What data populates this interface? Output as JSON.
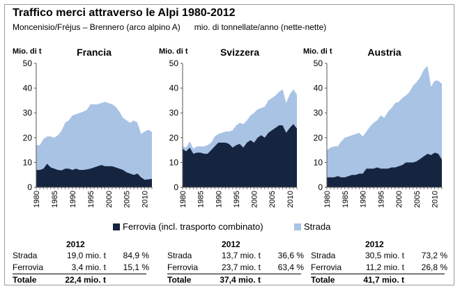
{
  "title": "Traffico merci attraverso le Alpi 1980-2012",
  "subtitle_left": "Moncenisio/Fréjus – Brennero (arco alpino A)",
  "subtitle_right": "mio. di tonnellate/anno (nette-nette)",
  "colors": {
    "ferrovia": "#16253f",
    "strada": "#a9c3e5",
    "axis": "#555555"
  },
  "legend": {
    "ferrovia": "Ferrovia (incl. trasporto combinato)",
    "strada": "Strada"
  },
  "chart_data": [
    {
      "type": "area",
      "title": "Francia",
      "ylabel": "Mio. di t",
      "ylim": [
        0,
        50
      ],
      "yticks": [
        0,
        10,
        20,
        30,
        40,
        50
      ],
      "xlim": [
        1980,
        2012
      ],
      "xticks": [
        1980,
        1985,
        1990,
        1995,
        2000,
        2005,
        2010
      ],
      "x": [
        1980,
        1981,
        1982,
        1983,
        1984,
        1985,
        1986,
        1987,
        1988,
        1989,
        1990,
        1991,
        1992,
        1993,
        1994,
        1995,
        1996,
        1997,
        1998,
        1999,
        2000,
        2001,
        2002,
        2003,
        2004,
        2005,
        2006,
        2007,
        2008,
        2009,
        2010,
        2011,
        2012
      ],
      "series": [
        {
          "name": "Ferrovia",
          "values": [
            7.0,
            7.0,
            7.5,
            9.5,
            8.0,
            7.5,
            7.0,
            6.8,
            7.5,
            7.5,
            7.0,
            7.5,
            7.0,
            7.0,
            7.2,
            7.5,
            8.0,
            8.5,
            9.0,
            8.5,
            8.5,
            8.5,
            8.0,
            7.5,
            7.0,
            6.0,
            5.5,
            5.0,
            5.5,
            4.0,
            3.0,
            3.2,
            3.4
          ]
        },
        {
          "name": "Strada",
          "values": [
            10.0,
            10.0,
            12.0,
            11.0,
            12.5,
            12.5,
            14.0,
            16.0,
            18.5,
            19.5,
            22.0,
            22.0,
            23.0,
            23.5,
            24.0,
            26.0,
            25.5,
            25.0,
            25.0,
            26.0,
            25.5,
            25.0,
            24.5,
            23.0,
            21.0,
            21.0,
            20.5,
            22.0,
            20.5,
            17.5,
            19.5,
            20.0,
            19.0
          ]
        }
      ],
      "summary": {
        "year": "2012",
        "rows": [
          {
            "label": "Strada",
            "value": "19,0 mio. t",
            "pct": "84,9 %"
          },
          {
            "label": "Ferrovia",
            "value": "3,4 mio. t",
            "pct": "15,1 %"
          }
        ],
        "total_label": "Totale",
        "total_value": "22,4 mio. t"
      }
    },
    {
      "type": "area",
      "title": "Svizzera",
      "ylabel": "Mio. di t",
      "ylim": [
        0,
        50
      ],
      "yticks": [
        0,
        10,
        20,
        30,
        40,
        50
      ],
      "xlim": [
        1980,
        2012
      ],
      "xticks": [
        1980,
        1985,
        1990,
        1995,
        2000,
        2005,
        2010
      ],
      "x": [
        1980,
        1981,
        1982,
        1983,
        1984,
        1985,
        1986,
        1987,
        1988,
        1989,
        1990,
        1991,
        1992,
        1993,
        1994,
        1995,
        1996,
        1997,
        1998,
        1999,
        2000,
        2001,
        2002,
        2003,
        2004,
        2005,
        2006,
        2007,
        2008,
        2009,
        2010,
        2011,
        2012
      ],
      "series": [
        {
          "name": "Ferrovia",
          "values": [
            15.5,
            14.5,
            16.0,
            13.5,
            14.0,
            14.0,
            13.5,
            13.5,
            15.0,
            16.5,
            18.0,
            18.0,
            18.0,
            17.5,
            16.0,
            17.0,
            17.5,
            16.0,
            18.0,
            19.0,
            18.0,
            20.0,
            21.0,
            20.0,
            22.0,
            23.0,
            24.0,
            25.0,
            25.0,
            22.0,
            24.0,
            25.5,
            23.7
          ]
        },
        {
          "name": "Strada",
          "values": [
            1.0,
            1.5,
            2.5,
            2.0,
            2.5,
            2.5,
            3.0,
            3.5,
            3.0,
            4.0,
            3.5,
            4.0,
            4.5,
            5.0,
            7.0,
            8.0,
            8.5,
            9.5,
            9.0,
            10.0,
            12.0,
            11.5,
            11.0,
            12.5,
            13.0,
            13.0,
            13.0,
            13.5,
            14.5,
            12.0,
            13.5,
            14.0,
            13.7
          ]
        }
      ],
      "summary": {
        "year": "2012",
        "rows": [
          {
            "label": "Strada",
            "value": "13,7 mio. t",
            "pct": "36,6 %"
          },
          {
            "label": "Ferrovia",
            "value": "23,7 mio. t",
            "pct": "63,4 %"
          }
        ],
        "total_label": "Totale",
        "total_value": "37,4 mio. t"
      }
    },
    {
      "type": "area",
      "title": "Austria",
      "ylabel": "Mio. di t",
      "ylim": [
        0,
        50
      ],
      "yticks": [
        0,
        10,
        20,
        30,
        40,
        50
      ],
      "xlim": [
        1980,
        2012
      ],
      "xticks": [
        1980,
        1985,
        1990,
        1995,
        2000,
        2005,
        2010
      ],
      "x": [
        1980,
        1981,
        1982,
        1983,
        1984,
        1985,
        1986,
        1987,
        1988,
        1989,
        1990,
        1991,
        1992,
        1993,
        1994,
        1995,
        1996,
        1997,
        1998,
        1999,
        2000,
        2001,
        2002,
        2003,
        2004,
        2005,
        2006,
        2007,
        2008,
        2009,
        2010,
        2011,
        2012
      ],
      "series": [
        {
          "name": "Ferrovia",
          "values": [
            4.0,
            4.0,
            4.0,
            4.5,
            4.0,
            4.0,
            4.5,
            5.0,
            5.0,
            5.5,
            5.5,
            7.5,
            7.5,
            7.5,
            8.0,
            7.5,
            7.5,
            7.5,
            8.0,
            8.0,
            8.5,
            9.0,
            10.0,
            10.0,
            10.0,
            10.5,
            11.5,
            12.5,
            13.5,
            13.0,
            14.0,
            13.5,
            11.2
          ]
        },
        {
          "name": "Strada",
          "values": [
            11.0,
            12.0,
            12.5,
            12.0,
            14.5,
            16.0,
            16.0,
            16.0,
            16.5,
            16.5,
            15.0,
            15.0,
            17.0,
            18.5,
            19.0,
            21.5,
            20.5,
            23.0,
            24.0,
            26.0,
            26.0,
            27.0,
            27.0,
            28.5,
            31.0,
            32.0,
            33.0,
            35.0,
            35.5,
            27.5,
            29.0,
            29.5,
            30.5
          ]
        }
      ],
      "summary": {
        "year": "2012",
        "rows": [
          {
            "label": "Strada",
            "value": "30,5 mio. t",
            "pct": "73,2 %"
          },
          {
            "label": "Ferrovia",
            "value": "11,2 mio. t",
            "pct": "26,8 %"
          }
        ],
        "total_label": "Totale",
        "total_value": "41,7 mio. t"
      }
    }
  ]
}
